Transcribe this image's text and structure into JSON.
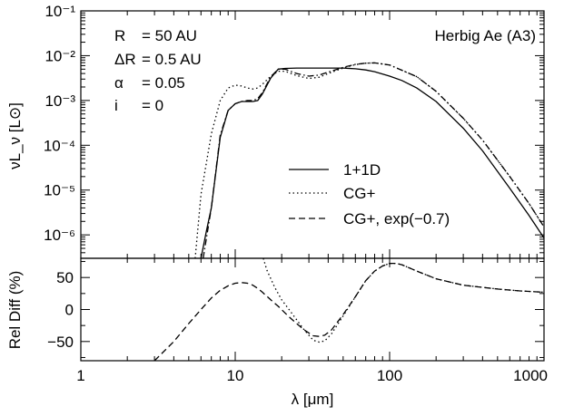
{
  "chart_data": [
    {
      "type": "line",
      "title": "",
      "ylabel": "νL_ν [L⊙]",
      "xlabel": "",
      "xscale": "log",
      "yscale": "log",
      "xlim": [
        1,
        1000
      ],
      "ylim": [
        3e-07,
        0.1
      ],
      "yticks": [
        {
          "value": 1e-06,
          "label": "10⁻⁶"
        },
        {
          "value": 1e-05,
          "label": "10⁻⁵"
        },
        {
          "value": 0.0001,
          "label": "10⁻⁴"
        },
        {
          "value": 0.001,
          "label": "10⁻³"
        },
        {
          "value": 0.01,
          "label": "10⁻²"
        },
        {
          "value": 0.1,
          "label": "10⁻¹"
        }
      ],
      "annotation": {
        "params": [
          {
            "name": "R",
            "value": "= 50 AU"
          },
          {
            "name": "ΔR",
            "value": "= 0.5 AU"
          },
          {
            "name": "α",
            "value": "= 0.05"
          },
          {
            "name": "i",
            "value": "= 0"
          }
        ],
        "object": "Herbig Ae (A3)"
      },
      "legend_position": "center-right",
      "series": [
        {
          "name": "1+1D",
          "style": "solid",
          "x": [
            6,
            6.5,
            7,
            8,
            9,
            10,
            11,
            12,
            13,
            14,
            15,
            17,
            19,
            21,
            25,
            30,
            35,
            40,
            50,
            60,
            70,
            80,
            100,
            120,
            150,
            200,
            300,
            400,
            600,
            800,
            1000
          ],
          "y": [
            3e-07,
            1.2e-06,
            4e-06,
            0.00015,
            0.0006,
            0.00085,
            0.00095,
            0.00095,
            0.00095,
            0.001,
            0.0014,
            0.0032,
            0.005,
            0.0052,
            0.0053,
            0.0053,
            0.0053,
            0.0053,
            0.0053,
            0.0051,
            0.0048,
            0.0044,
            0.0035,
            0.0028,
            0.0019,
            0.00095,
            0.00024,
            7.5e-05,
            1.1e-05,
            2.7e-06,
            8.5e-07
          ]
        },
        {
          "name": "CG+",
          "style": "dotted",
          "x": [
            5.5,
            6,
            6.5,
            7,
            8,
            9,
            10,
            11,
            12,
            13,
            14,
            15,
            17,
            19,
            21,
            25,
            30,
            35,
            40,
            50,
            60,
            70,
            80,
            100,
            150,
            200,
            300,
            400,
            600,
            800,
            1000
          ],
          "y": [
            3e-07,
            8e-06,
            4e-05,
            0.00018,
            0.001,
            0.0019,
            0.0022,
            0.0021,
            0.0019,
            0.0018,
            0.0019,
            0.0023,
            0.0035,
            0.0045,
            0.0045,
            0.0036,
            0.0031,
            0.0033,
            0.004,
            0.0053,
            0.0063,
            0.0068,
            0.0069,
            0.0062,
            0.0034,
            0.0016,
            0.0004,
            0.00013,
            2e-05,
            5e-06,
            1.5e-06
          ]
        },
        {
          "name": "CG+, exp(−0.7)",
          "style": "dash-dot",
          "x": [
            6.2,
            7,
            8,
            9,
            10,
            11,
            12,
            13,
            14,
            15,
            17,
            19,
            21,
            25,
            30,
            35,
            40,
            50,
            60,
            70,
            80,
            100,
            150,
            200,
            300,
            400,
            600,
            800,
            1000
          ],
          "y": [
            3e-07,
            4e-06,
            0.00017,
            0.0006,
            0.00085,
            0.00095,
            0.001,
            0.001,
            0.0011,
            0.0015,
            0.0034,
            0.005,
            0.005,
            0.004,
            0.0035,
            0.0037,
            0.0043,
            0.0055,
            0.0064,
            0.0068,
            0.0069,
            0.0062,
            0.0034,
            0.0016,
            0.0004,
            0.00013,
            2e-05,
            5e-06,
            1.5e-06
          ]
        }
      ]
    },
    {
      "type": "line",
      "title": "",
      "xlabel": "λ [μm]",
      "ylabel": "Rel Diff (%)",
      "xscale": "log",
      "xlim": [
        1,
        1000
      ],
      "ylim": [
        -80,
        80
      ],
      "xticks": [
        {
          "value": 1,
          "label": "1"
        },
        {
          "value": 10,
          "label": "10"
        },
        {
          "value": 100,
          "label": "100"
        },
        {
          "value": 1000,
          "label": "1000"
        }
      ],
      "yticks": [
        {
          "value": -50,
          "label": "−50"
        },
        {
          "value": 0,
          "label": "0"
        },
        {
          "value": 50,
          "label": "50"
        }
      ],
      "series": [
        {
          "style": "dotted",
          "x": [
            15.2,
            16,
            18,
            20,
            22,
            25,
            28,
            32,
            35,
            38,
            42,
            50,
            60,
            70,
            80,
            90,
            100,
            110,
            120,
            150,
            200,
            300,
            500,
            700,
            1000
          ],
          "y": [
            80,
            62,
            35,
            15,
            2,
            -16,
            -32,
            -48,
            -51,
            -49,
            -38,
            -10,
            20,
            45,
            60,
            68,
            72,
            72,
            70,
            60,
            48,
            38,
            32,
            29,
            27
          ]
        },
        {
          "style": "dashed",
          "x": [
            3,
            4,
            5,
            6,
            7,
            8,
            9,
            10,
            11,
            12,
            13,
            14,
            15,
            17,
            19,
            22,
            25,
            28,
            32,
            35,
            38,
            42,
            50,
            60,
            70,
            80,
            90,
            100,
            110,
            120,
            150,
            200,
            300,
            500,
            700,
            1000
          ],
          "y": [
            -80,
            -50,
            -22,
            0,
            18,
            30,
            37,
            41,
            42,
            41,
            38,
            33,
            27,
            15,
            5,
            -10,
            -22,
            -32,
            -41,
            -42,
            -40,
            -32,
            -8,
            20,
            45,
            60,
            68,
            72,
            72,
            70,
            60,
            48,
            38,
            32,
            29,
            27
          ]
        }
      ]
    }
  ]
}
